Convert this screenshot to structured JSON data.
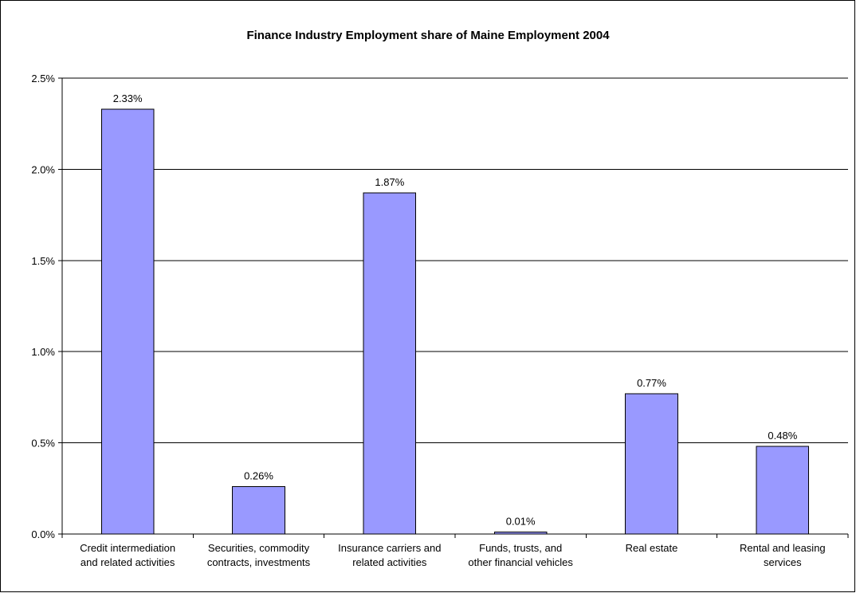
{
  "chart_data": {
    "type": "bar",
    "title": "Finance Industry Employment share of Maine Employment 2004",
    "xlabel": "",
    "ylabel": "",
    "categories": [
      [
        "Credit intermediation",
        "and related activities"
      ],
      [
        "Securities, commodity",
        "contracts, investments"
      ],
      [
        "Insurance carriers and",
        "related activities"
      ],
      [
        "Funds, trusts, and",
        "other financial vehicles"
      ],
      [
        "Real estate"
      ],
      [
        "Rental and leasing",
        "services"
      ]
    ],
    "values": [
      2.33,
      0.26,
      1.87,
      0.01,
      0.77,
      0.48
    ],
    "data_labels": [
      "2.33%",
      "0.26%",
      "1.87%",
      "0.01%",
      "0.77%",
      "0.48%"
    ],
    "ylim": [
      0,
      2.5
    ],
    "yticks": [
      0,
      0.5,
      1.0,
      1.5,
      2.0,
      2.5
    ],
    "ytick_labels": [
      "0.0%",
      "0.5%",
      "1.0%",
      "1.5%",
      "2.0%",
      "2.5%"
    ],
    "grid": true,
    "legend": "none",
    "bar_color": "#9999ff",
    "bar_edge_color": "#000000",
    "grid_color": "#000000"
  }
}
